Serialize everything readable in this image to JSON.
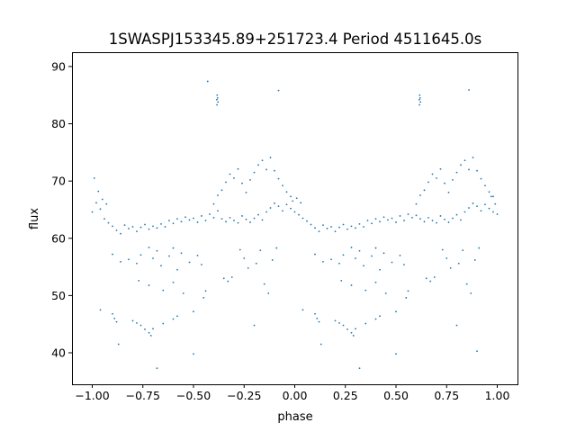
{
  "chart_data": {
    "type": "scatter",
    "title": "1SWASPJ153345.89+251723.4 Period 4511645.0s",
    "xlabel": "phase",
    "ylabel": "flux",
    "xlim": [
      -1.1,
      1.1
    ],
    "ylim": [
      34.5,
      92.5
    ],
    "xticks": [
      -1.0,
      -0.75,
      -0.5,
      -0.25,
      0.0,
      0.25,
      0.5,
      0.75,
      1.0
    ],
    "xtick_labels": [
      "−1.00",
      "−0.75",
      "−0.50",
      "−0.25",
      "0.00",
      "0.25",
      "0.50",
      "0.75",
      "1.00"
    ],
    "yticks": [
      40,
      50,
      60,
      70,
      80,
      90
    ],
    "ytick_labels": [
      "40",
      "50",
      "60",
      "70",
      "80",
      "90"
    ],
    "grid": false,
    "marker_color": "#1f77b4",
    "series": [
      {
        "points": [
          [
            -1.0,
            64.6
          ],
          [
            -0.98,
            66.2
          ],
          [
            -0.96,
            65.1
          ],
          [
            -0.94,
            63.4
          ],
          [
            -0.92,
            62.7
          ],
          [
            -0.9,
            62.1
          ],
          [
            -0.88,
            61.4
          ],
          [
            -0.86,
            60.8
          ],
          [
            -0.84,
            62.3
          ],
          [
            -0.82,
            61.7
          ],
          [
            -0.8,
            62.0
          ],
          [
            -0.78,
            61.2
          ],
          [
            -0.76,
            61.9
          ],
          [
            -0.74,
            62.4
          ],
          [
            -0.72,
            61.6
          ],
          [
            -0.7,
            62.1
          ],
          [
            -0.68,
            61.8
          ],
          [
            -0.66,
            62.5
          ],
          [
            -0.64,
            62.0
          ],
          [
            -0.62,
            63.1
          ],
          [
            -0.6,
            62.6
          ],
          [
            -0.58,
            63.4
          ],
          [
            -0.56,
            62.9
          ],
          [
            -0.54,
            63.7
          ],
          [
            -0.52,
            63.2
          ],
          [
            -0.5,
            63.5
          ],
          [
            -0.48,
            62.8
          ],
          [
            -0.46,
            63.9
          ],
          [
            -0.44,
            63.1
          ],
          [
            -0.42,
            64.2
          ],
          [
            -0.4,
            63.6
          ],
          [
            -0.38,
            64.8
          ],
          [
            -0.36,
            63.4
          ],
          [
            -0.34,
            62.9
          ],
          [
            -0.32,
            63.6
          ],
          [
            -0.3,
            63.1
          ],
          [
            -0.28,
            62.7
          ],
          [
            -0.26,
            63.9
          ],
          [
            -0.24,
            63.3
          ],
          [
            -0.22,
            62.8
          ],
          [
            -0.2,
            63.5
          ],
          [
            -0.18,
            64.1
          ],
          [
            -0.16,
            63.2
          ],
          [
            -0.14,
            64.6
          ],
          [
            -0.12,
            65.3
          ],
          [
            -0.1,
            66.1
          ],
          [
            -0.08,
            65.6
          ],
          [
            -0.06,
            64.8
          ],
          [
            -0.04,
            65.9
          ],
          [
            -0.02,
            65.2
          ],
          [
            0.0,
            64.6
          ],
          [
            0.02,
            64.1
          ],
          [
            0.04,
            63.5
          ],
          [
            0.06,
            63.0
          ],
          [
            0.08,
            62.4
          ],
          [
            0.1,
            61.8
          ],
          [
            0.12,
            61.2
          ],
          [
            0.14,
            62.3
          ],
          [
            0.16,
            61.7
          ],
          [
            0.18,
            62.0
          ],
          [
            0.2,
            61.2
          ],
          [
            0.22,
            61.9
          ],
          [
            0.24,
            62.4
          ],
          [
            0.26,
            61.6
          ],
          [
            0.28,
            62.1
          ],
          [
            0.3,
            61.8
          ],
          [
            0.32,
            62.5
          ],
          [
            0.34,
            62.0
          ],
          [
            0.36,
            63.1
          ],
          [
            0.38,
            62.6
          ],
          [
            0.4,
            63.4
          ],
          [
            0.42,
            62.9
          ],
          [
            0.44,
            63.7
          ],
          [
            0.46,
            63.2
          ],
          [
            0.48,
            63.5
          ],
          [
            0.5,
            62.8
          ],
          [
            0.52,
            63.9
          ],
          [
            0.54,
            63.1
          ],
          [
            0.56,
            64.2
          ],
          [
            0.58,
            63.6
          ],
          [
            0.6,
            64.0
          ],
          [
            0.62,
            63.4
          ],
          [
            0.64,
            62.9
          ],
          [
            0.66,
            63.6
          ],
          [
            0.68,
            63.1
          ],
          [
            0.7,
            62.7
          ],
          [
            0.72,
            63.9
          ],
          [
            0.74,
            63.3
          ],
          [
            0.76,
            62.8
          ],
          [
            0.78,
            63.5
          ],
          [
            0.8,
            64.1
          ],
          [
            0.82,
            63.2
          ],
          [
            0.84,
            64.6
          ],
          [
            0.86,
            65.3
          ],
          [
            0.88,
            66.1
          ],
          [
            0.9,
            65.6
          ],
          [
            0.92,
            64.8
          ],
          [
            0.94,
            65.9
          ],
          [
            0.96,
            65.2
          ],
          [
            0.98,
            64.6
          ],
          [
            1.0,
            64.2
          ],
          [
            -0.99,
            70.5
          ],
          [
            -0.97,
            68.2
          ],
          [
            -0.95,
            66.8
          ],
          [
            -0.93,
            66.0
          ],
          [
            -0.01,
            66.5
          ],
          [
            0.01,
            67.0
          ],
          [
            0.03,
            66.2
          ],
          [
            0.97,
            67.3
          ],
          [
            0.99,
            66.0
          ],
          [
            -0.9,
            57.2
          ],
          [
            -0.86,
            55.9
          ],
          [
            -0.82,
            56.3
          ],
          [
            -0.78,
            55.6
          ],
          [
            -0.76,
            57.1
          ],
          [
            -0.72,
            58.4
          ],
          [
            -0.7,
            56.5
          ],
          [
            -0.68,
            57.8
          ],
          [
            -0.66,
            55.2
          ],
          [
            -0.62,
            56.9
          ],
          [
            -0.6,
            58.3
          ],
          [
            -0.58,
            54.5
          ],
          [
            -0.56,
            57.4
          ],
          [
            -0.52,
            55.8
          ],
          [
            -0.48,
            57.0
          ],
          [
            -0.46,
            55.4
          ],
          [
            0.1,
            57.2
          ],
          [
            0.14,
            55.9
          ],
          [
            0.18,
            56.3
          ],
          [
            0.22,
            55.6
          ],
          [
            0.24,
            57.1
          ],
          [
            0.28,
            58.4
          ],
          [
            0.3,
            56.5
          ],
          [
            0.32,
            57.8
          ],
          [
            0.34,
            55.2
          ],
          [
            0.38,
            56.9
          ],
          [
            0.4,
            58.3
          ],
          [
            0.42,
            54.5
          ],
          [
            0.44,
            57.4
          ],
          [
            0.48,
            55.8
          ],
          [
            0.52,
            57.0
          ],
          [
            0.54,
            55.4
          ],
          [
            -0.77,
            52.6
          ],
          [
            -0.72,
            51.8
          ],
          [
            -0.65,
            50.9
          ],
          [
            -0.6,
            52.3
          ],
          [
            -0.55,
            50.4
          ],
          [
            -0.45,
            49.6
          ],
          [
            -0.44,
            50.8
          ],
          [
            0.23,
            52.6
          ],
          [
            0.28,
            51.8
          ],
          [
            0.35,
            50.9
          ],
          [
            0.4,
            52.3
          ],
          [
            0.45,
            50.4
          ],
          [
            0.55,
            49.6
          ],
          [
            0.56,
            50.8
          ],
          [
            -0.9,
            46.8
          ],
          [
            -0.89,
            46.0
          ],
          [
            -0.88,
            45.4
          ],
          [
            -0.8,
            45.6
          ],
          [
            -0.78,
            45.2
          ],
          [
            -0.76,
            44.8
          ],
          [
            -0.74,
            44.1
          ],
          [
            -0.72,
            43.5
          ],
          [
            -0.71,
            43.0
          ],
          [
            -0.7,
            44.2
          ],
          [
            -0.65,
            45.1
          ],
          [
            -0.6,
            45.9
          ],
          [
            -0.58,
            46.4
          ],
          [
            -0.5,
            47.2
          ],
          [
            0.1,
            46.8
          ],
          [
            0.11,
            46.0
          ],
          [
            0.12,
            45.4
          ],
          [
            0.2,
            45.6
          ],
          [
            0.22,
            45.2
          ],
          [
            0.24,
            44.8
          ],
          [
            0.26,
            44.1
          ],
          [
            0.28,
            43.5
          ],
          [
            0.29,
            43.0
          ],
          [
            0.3,
            44.2
          ],
          [
            0.35,
            45.1
          ],
          [
            0.4,
            45.9
          ],
          [
            0.42,
            46.4
          ],
          [
            0.5,
            47.2
          ],
          [
            -0.96,
            47.5
          ],
          [
            -0.87,
            41.5
          ],
          [
            -0.68,
            37.3
          ],
          [
            -0.5,
            39.8
          ],
          [
            -0.35,
            53.0
          ],
          [
            -0.2,
            44.8
          ],
          [
            0.04,
            47.5
          ],
          [
            0.13,
            41.5
          ],
          [
            0.32,
            37.3
          ],
          [
            0.5,
            39.8
          ],
          [
            0.65,
            53.0
          ],
          [
            0.8,
            44.8
          ],
          [
            0.9,
            40.3
          ],
          [
            -0.385,
            84.2
          ],
          [
            -0.383,
            85.0
          ],
          [
            -0.381,
            84.5
          ],
          [
            -0.379,
            83.8
          ],
          [
            -0.384,
            83.3
          ],
          [
            0.615,
            84.2
          ],
          [
            0.617,
            85.0
          ],
          [
            0.619,
            84.5
          ],
          [
            0.621,
            83.8
          ],
          [
            0.616,
            83.3
          ],
          [
            -0.43,
            87.4
          ],
          [
            -0.08,
            85.8
          ],
          [
            0.86,
            85.9
          ],
          [
            -0.4,
            66.0
          ],
          [
            -0.38,
            67.5
          ],
          [
            -0.36,
            68.4
          ],
          [
            -0.34,
            69.8
          ],
          [
            -0.32,
            71.2
          ],
          [
            -0.3,
            70.5
          ],
          [
            -0.28,
            72.1
          ],
          [
            -0.26,
            69.6
          ],
          [
            -0.24,
            68.0
          ],
          [
            -0.22,
            70.2
          ],
          [
            -0.2,
            71.5
          ],
          [
            -0.18,
            72.8
          ],
          [
            -0.16,
            73.6
          ],
          [
            -0.14,
            72.0
          ],
          [
            -0.12,
            74.1
          ],
          [
            -0.1,
            71.8
          ],
          [
            -0.08,
            70.4
          ],
          [
            -0.06,
            69.2
          ],
          [
            -0.04,
            68.1
          ],
          [
            -0.02,
            67.3
          ],
          [
            0.6,
            66.0
          ],
          [
            0.62,
            67.5
          ],
          [
            0.64,
            68.4
          ],
          [
            0.66,
            69.8
          ],
          [
            0.68,
            71.2
          ],
          [
            0.7,
            70.5
          ],
          [
            0.72,
            72.1
          ],
          [
            0.74,
            69.6
          ],
          [
            0.76,
            68.0
          ],
          [
            0.78,
            70.2
          ],
          [
            0.8,
            71.5
          ],
          [
            0.82,
            72.8
          ],
          [
            0.84,
            73.6
          ],
          [
            0.86,
            72.0
          ],
          [
            0.88,
            74.1
          ],
          [
            0.9,
            71.8
          ],
          [
            0.92,
            70.4
          ],
          [
            0.94,
            69.2
          ],
          [
            0.96,
            68.1
          ],
          [
            0.98,
            67.3
          ],
          [
            -0.33,
            52.5
          ],
          [
            -0.31,
            53.2
          ],
          [
            -0.27,
            58.0
          ],
          [
            -0.25,
            56.5
          ],
          [
            -0.23,
            54.8
          ],
          [
            -0.19,
            55.6
          ],
          [
            -0.17,
            57.9
          ],
          [
            -0.15,
            52.0
          ],
          [
            -0.13,
            50.4
          ],
          [
            -0.11,
            56.2
          ],
          [
            -0.09,
            58.3
          ],
          [
            0.67,
            52.5
          ],
          [
            0.69,
            53.2
          ],
          [
            0.73,
            58.0
          ],
          [
            0.75,
            56.5
          ],
          [
            0.77,
            54.8
          ],
          [
            0.81,
            55.6
          ],
          [
            0.83,
            57.9
          ],
          [
            0.85,
            52.0
          ],
          [
            0.87,
            50.4
          ],
          [
            0.89,
            56.2
          ],
          [
            0.91,
            58.3
          ]
        ]
      }
    ]
  }
}
